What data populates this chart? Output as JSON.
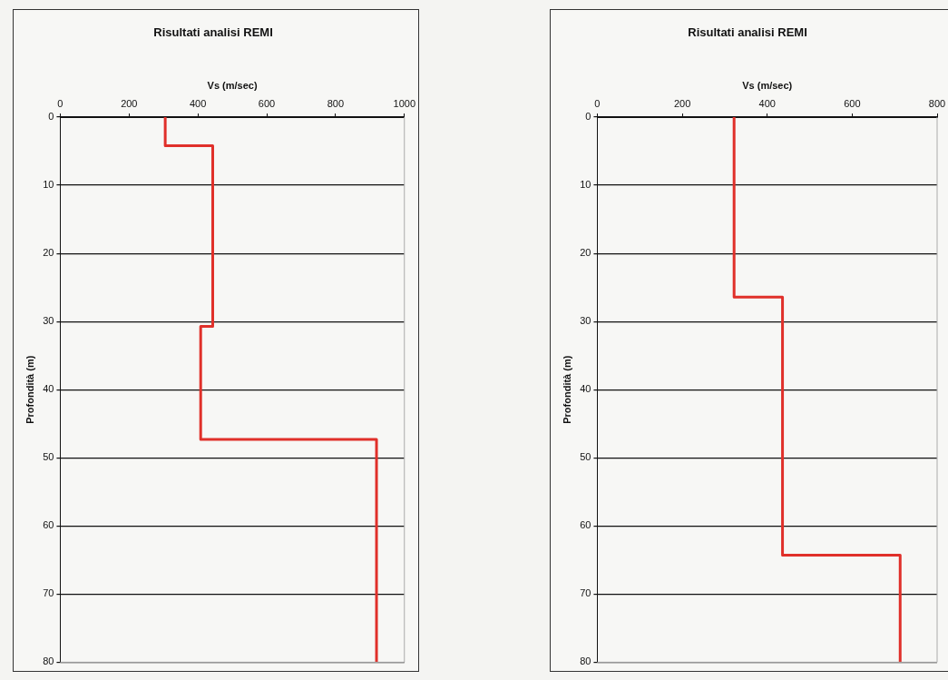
{
  "chart_data": [
    {
      "type": "line",
      "title": "Risultati analisi REMI",
      "xlabel": "Vs (m/sec)",
      "ylabel": "Profondità (m)",
      "xlim": [
        0,
        1000
      ],
      "xticks": [
        0,
        200,
        400,
        600,
        800,
        1000
      ],
      "ylim": [
        80,
        0
      ],
      "yticks": [
        0,
        10,
        20,
        30,
        40,
        50,
        60,
        70,
        80
      ],
      "grid": "y",
      "legend": false,
      "marker": "none",
      "line_style": "solid",
      "series": [
        {
          "color": "#e0302a",
          "x": [
            305,
            305,
            443,
            443,
            408,
            408,
            919,
            919
          ],
          "values": [
            0,
            4.2,
            4.2,
            30.7,
            30.7,
            47.3,
            47.3,
            80
          ]
        }
      ]
    },
    {
      "type": "line",
      "title": "Risultati analisi REMI",
      "xlabel": "Vs (m/sec)",
      "ylabel": "Profondità (m)",
      "xlim": [
        0,
        800
      ],
      "xticks": [
        0,
        200,
        400,
        600,
        800
      ],
      "ylim": [
        80,
        0
      ],
      "yticks": [
        0,
        10,
        20,
        30,
        40,
        50,
        60,
        70,
        80
      ],
      "grid": "y",
      "legend": false,
      "marker": "none",
      "line_style": "solid",
      "series": [
        {
          "color": "#e0302a",
          "x": [
            322,
            322,
            436,
            436,
            713,
            713
          ],
          "values": [
            0,
            26.4,
            26.4,
            64.3,
            64.3,
            80
          ]
        }
      ]
    }
  ]
}
